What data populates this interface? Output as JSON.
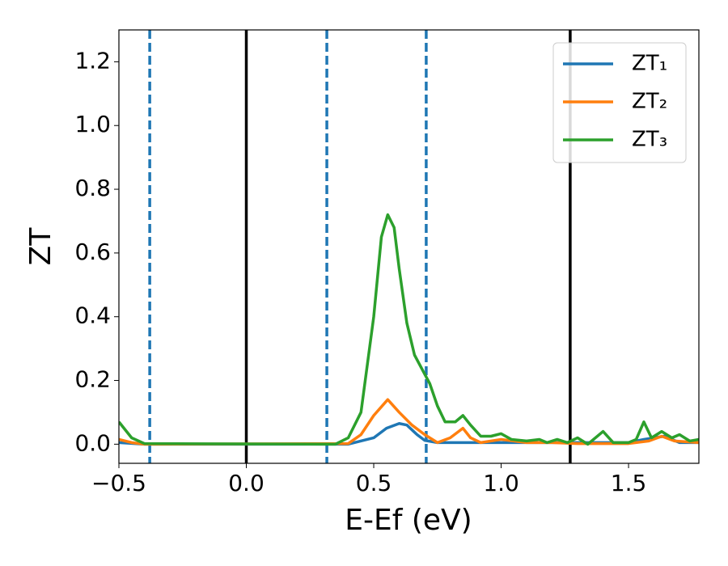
{
  "chart_data": {
    "type": "line",
    "xlabel": "E-Ef (eV)",
    "ylabel": "ZT",
    "xlim": [
      -0.5,
      1.776
    ],
    "ylim": [
      -0.06,
      1.3
    ],
    "xticks": [
      {
        "value": -0.5,
        "label": "−0.5"
      },
      {
        "value": 0,
        "label": "0.0"
      },
      0.5,
      {
        "value": 1,
        "label": "1.0"
      },
      1.5
    ],
    "yticks": [
      {
        "value": 0,
        "label": "0.0"
      },
      0.2,
      0.4,
      0.6,
      0.8,
      {
        "value": 1,
        "label": "1.0"
      },
      1.2
    ],
    "legend": "upper right",
    "vlines": [
      {
        "x": -0.379,
        "color": "#1f77b4",
        "style": "dashed"
      },
      {
        "x": 0,
        "color": "#000000",
        "style": "solid"
      },
      {
        "x": 0.316,
        "color": "#1f77b4",
        "style": "dashed"
      },
      {
        "x": 0.706,
        "color": "#1f77b4",
        "style": "dashed"
      },
      {
        "x": 1.271,
        "color": "#000000",
        "style": "solid"
      }
    ],
    "series": [
      {
        "name": "ZT₁",
        "color": "#1f77b4",
        "x": [
          -0.5,
          -0.4,
          0.4,
          0.5,
          0.55,
          0.6,
          0.63,
          0.67,
          0.7,
          0.75,
          0.85,
          1.0,
          1.2,
          1.5,
          1.56,
          1.6,
          1.64,
          1.7,
          1.776
        ],
        "values": [
          0.005,
          0,
          0,
          0.02,
          0.05,
          0.065,
          0.06,
          0.03,
          0.012,
          0.005,
          0.005,
          0.005,
          0.005,
          0.005,
          0.015,
          0.02,
          0.025,
          0.005,
          0.005
        ]
      },
      {
        "name": "ZT₂",
        "color": "#ff7f0e",
        "x": [
          -0.5,
          -0.45,
          -0.4,
          0.4,
          0.45,
          0.5,
          0.555,
          0.6,
          0.65,
          0.7,
          0.75,
          0.8,
          0.85,
          0.88,
          0.92,
          1.0,
          1.05,
          1.1,
          1.2,
          1.3,
          1.5,
          1.58,
          1.63,
          1.68,
          1.776
        ],
        "values": [
          0.015,
          0.005,
          0,
          0.002,
          0.03,
          0.09,
          0.14,
          0.1,
          0.06,
          0.03,
          0.005,
          0.02,
          0.05,
          0.02,
          0.005,
          0.015,
          0.01,
          0.005,
          0.005,
          0.002,
          0.002,
          0.01,
          0.025,
          0.01,
          0.005
        ]
      },
      {
        "name": "ZT₃",
        "color": "#2ca02c",
        "x": [
          -0.5,
          -0.45,
          -0.4,
          0.35,
          0.4,
          0.45,
          0.5,
          0.53,
          0.555,
          0.58,
          0.6,
          0.63,
          0.66,
          0.7,
          0.72,
          0.75,
          0.78,
          0.82,
          0.85,
          0.88,
          0.92,
          0.96,
          1.0,
          1.04,
          1.1,
          1.15,
          1.18,
          1.22,
          1.26,
          1.3,
          1.34,
          1.4,
          1.44,
          1.5,
          1.53,
          1.56,
          1.59,
          1.63,
          1.67,
          1.7,
          1.74,
          1.776
        ],
        "values": [
          0.07,
          0.02,
          0.002,
          0,
          0.02,
          0.1,
          0.4,
          0.65,
          0.72,
          0.68,
          0.55,
          0.38,
          0.28,
          0.22,
          0.19,
          0.12,
          0.07,
          0.07,
          0.09,
          0.06,
          0.025,
          0.025,
          0.033,
          0.015,
          0.01,
          0.015,
          0.005,
          0.015,
          0.005,
          0.02,
          0,
          0.04,
          0.005,
          0.005,
          0.015,
          0.07,
          0.02,
          0.04,
          0.02,
          0.03,
          0.01,
          0.015
        ]
      }
    ]
  }
}
